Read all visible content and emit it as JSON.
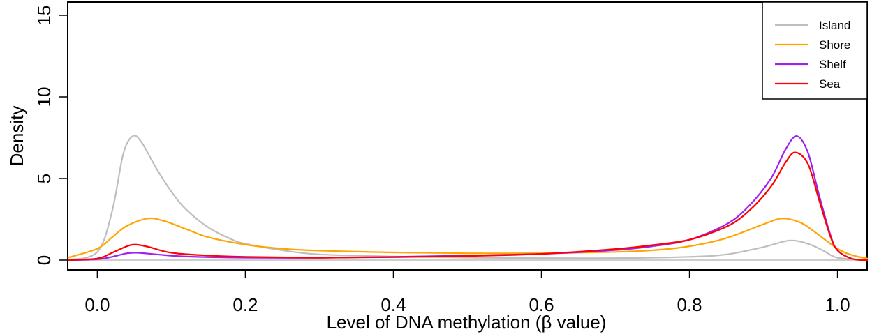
{
  "chart_data": {
    "type": "line",
    "xlabel": "Level of DNA methylation (β value)",
    "ylabel": "Density",
    "xlim": [
      -0.04,
      1.04
    ],
    "ylim": [
      0,
      15
    ],
    "x_ticks": [
      0.0,
      0.2,
      0.4,
      0.6,
      0.8,
      1.0
    ],
    "x_tick_labels": [
      "0.0",
      "0.2",
      "0.4",
      "0.6",
      "0.8",
      "1.0"
    ],
    "y_ticks": [
      0,
      5,
      10,
      15
    ],
    "y_tick_labels": [
      "0",
      "5",
      "10",
      "15"
    ],
    "grid": false,
    "legend": {
      "position": "top-right",
      "entries": [
        "Island",
        "Shore",
        "Shelf",
        "Sea"
      ]
    },
    "series": [
      {
        "name": "Island",
        "color": "#bebebe",
        "points": [
          [
            -0.04,
            0.0
          ],
          [
            0.0,
            0.5
          ],
          [
            0.02,
            3.0
          ],
          [
            0.035,
            6.5
          ],
          [
            0.048,
            7.6
          ],
          [
            0.06,
            7.2
          ],
          [
            0.08,
            5.6
          ],
          [
            0.1,
            4.2
          ],
          [
            0.12,
            3.1
          ],
          [
            0.15,
            2.0
          ],
          [
            0.18,
            1.3
          ],
          [
            0.2,
            1.0
          ],
          [
            0.25,
            0.6
          ],
          [
            0.3,
            0.35
          ],
          [
            0.4,
            0.22
          ],
          [
            0.5,
            0.15
          ],
          [
            0.6,
            0.12
          ],
          [
            0.7,
            0.12
          ],
          [
            0.8,
            0.2
          ],
          [
            0.85,
            0.35
          ],
          [
            0.9,
            0.8
          ],
          [
            0.935,
            1.2
          ],
          [
            0.96,
            1.0
          ],
          [
            0.98,
            0.6
          ],
          [
            1.0,
            0.15
          ],
          [
            1.04,
            0.0
          ]
        ]
      },
      {
        "name": "Shore",
        "color": "#ffa500",
        "points": [
          [
            -0.04,
            0.15
          ],
          [
            0.0,
            0.7
          ],
          [
            0.02,
            1.4
          ],
          [
            0.04,
            2.1
          ],
          [
            0.068,
            2.55
          ],
          [
            0.09,
            2.4
          ],
          [
            0.12,
            1.9
          ],
          [
            0.15,
            1.4
          ],
          [
            0.2,
            0.95
          ],
          [
            0.25,
            0.7
          ],
          [
            0.3,
            0.58
          ],
          [
            0.4,
            0.47
          ],
          [
            0.5,
            0.42
          ],
          [
            0.6,
            0.42
          ],
          [
            0.7,
            0.5
          ],
          [
            0.75,
            0.6
          ],
          [
            0.8,
            0.85
          ],
          [
            0.85,
            1.35
          ],
          [
            0.9,
            2.2
          ],
          [
            0.925,
            2.55
          ],
          [
            0.95,
            2.3
          ],
          [
            0.97,
            1.7
          ],
          [
            1.0,
            0.7
          ],
          [
            1.02,
            0.3
          ],
          [
            1.04,
            0.1
          ]
        ]
      },
      {
        "name": "Shelf",
        "color": "#a020f0",
        "points": [
          [
            -0.04,
            0.0
          ],
          [
            0.0,
            0.05
          ],
          [
            0.02,
            0.2
          ],
          [
            0.04,
            0.42
          ],
          [
            0.055,
            0.45
          ],
          [
            0.08,
            0.35
          ],
          [
            0.12,
            0.22
          ],
          [
            0.2,
            0.15
          ],
          [
            0.3,
            0.14
          ],
          [
            0.4,
            0.2
          ],
          [
            0.5,
            0.28
          ],
          [
            0.6,
            0.38
          ],
          [
            0.7,
            0.62
          ],
          [
            0.75,
            0.85
          ],
          [
            0.8,
            1.25
          ],
          [
            0.85,
            2.2
          ],
          [
            0.88,
            3.3
          ],
          [
            0.91,
            5.0
          ],
          [
            0.93,
            6.8
          ],
          [
            0.945,
            7.6
          ],
          [
            0.96,
            6.6
          ],
          [
            0.975,
            4.0
          ],
          [
            0.99,
            1.6
          ],
          [
            1.0,
            0.6
          ],
          [
            1.02,
            0.08
          ],
          [
            1.04,
            0.0
          ]
        ]
      },
      {
        "name": "Sea",
        "color": "#ff0000",
        "points": [
          [
            -0.04,
            0.0
          ],
          [
            0.0,
            0.1
          ],
          [
            0.02,
            0.45
          ],
          [
            0.04,
            0.85
          ],
          [
            0.052,
            0.95
          ],
          [
            0.07,
            0.8
          ],
          [
            0.1,
            0.45
          ],
          [
            0.15,
            0.28
          ],
          [
            0.2,
            0.2
          ],
          [
            0.3,
            0.15
          ],
          [
            0.4,
            0.18
          ],
          [
            0.5,
            0.25
          ],
          [
            0.6,
            0.38
          ],
          [
            0.7,
            0.68
          ],
          [
            0.75,
            0.92
          ],
          [
            0.8,
            1.25
          ],
          [
            0.85,
            2.05
          ],
          [
            0.88,
            3.0
          ],
          [
            0.91,
            4.5
          ],
          [
            0.93,
            6.0
          ],
          [
            0.943,
            6.6
          ],
          [
            0.96,
            5.9
          ],
          [
            0.975,
            3.7
          ],
          [
            0.99,
            1.5
          ],
          [
            1.0,
            0.6
          ],
          [
            1.02,
            0.08
          ],
          [
            1.04,
            0.0
          ]
        ]
      }
    ]
  }
}
